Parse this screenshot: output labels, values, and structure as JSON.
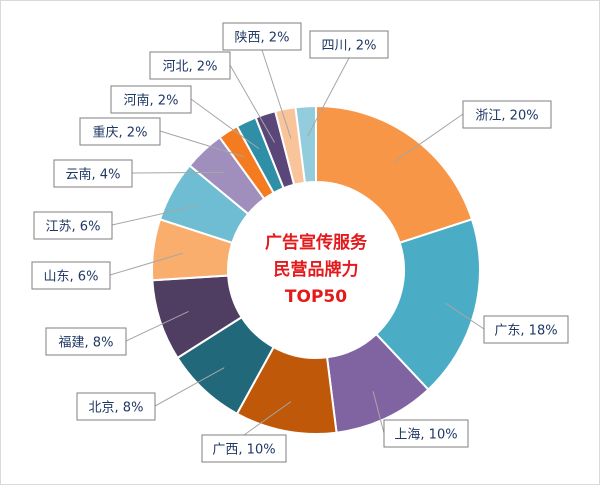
{
  "chart_data": {
    "type": "pie",
    "variant": "donut",
    "center_title": [
      "广告宣传服务",
      "民营品牌力",
      "TOP50"
    ],
    "slices": [
      {
        "name": "浙江",
        "value": 20,
        "label": "浙江, 20%",
        "color": "#F79646"
      },
      {
        "name": "广东",
        "value": 18,
        "label": "广东, 18%",
        "color": "#4BACC6"
      },
      {
        "name": "上海",
        "value": 10,
        "label": "上海, 10%",
        "color": "#8064A2"
      },
      {
        "name": "广西",
        "value": 10,
        "label": "广西, 10%",
        "color": "#C0580A"
      },
      {
        "name": "北京",
        "value": 8,
        "label": "北京, 8%",
        "color": "#21687A"
      },
      {
        "name": "福建",
        "value": 8,
        "label": "福建, 8%",
        "color": "#4F3D62"
      },
      {
        "name": "山东",
        "value": 6,
        "label": "山东, 6%",
        "color": "#F9AE6E"
      },
      {
        "name": "江苏",
        "value": 6,
        "label": "江苏, 6%",
        "color": "#6FBDD2"
      },
      {
        "name": "云南",
        "value": 4,
        "label": "云南, 4%",
        "color": "#A08FBC"
      },
      {
        "name": "重庆",
        "value": 2,
        "label": "重庆, 2%",
        "color": "#F47B20"
      },
      {
        "name": "河南",
        "value": 2,
        "label": "河南, 2%",
        "color": "#2E8FA6"
      },
      {
        "name": "河北",
        "value": 2,
        "label": "河北, 2%",
        "color": "#5A4679"
      },
      {
        "name": "陕西",
        "value": 2,
        "label": "陕西, 2%",
        "color": "#FAC49A"
      },
      {
        "name": "四川",
        "value": 2,
        "label": "四川, 2%",
        "color": "#93CDDD"
      }
    ]
  }
}
